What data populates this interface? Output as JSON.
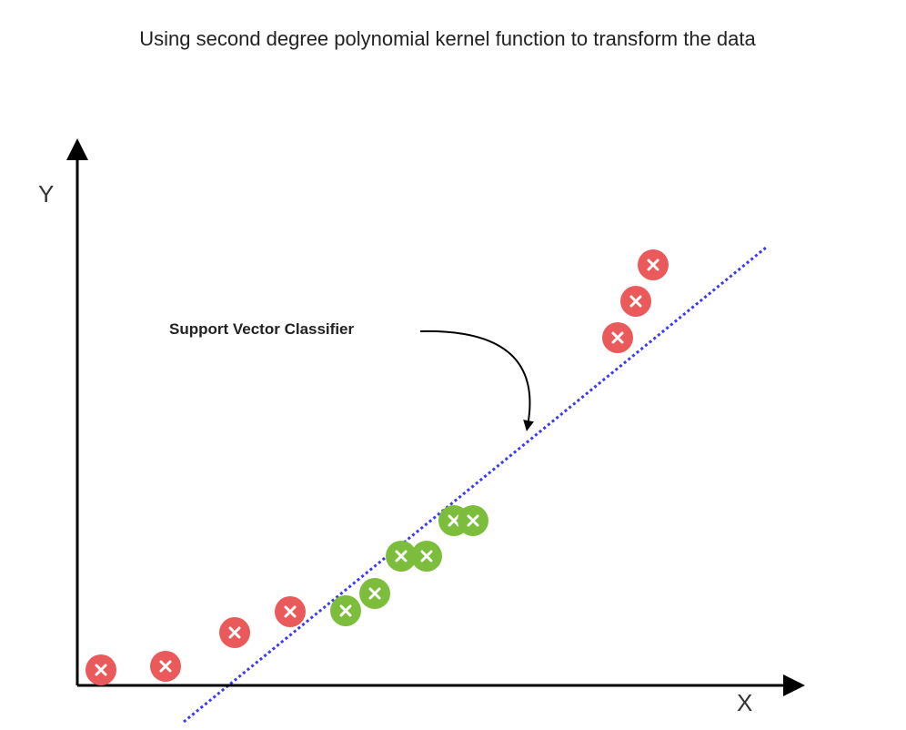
{
  "title": "Using second degree polynomial kernel function to transform the data",
  "axes": {
    "x_label": "X",
    "y_label": "Y"
  },
  "annotation": {
    "label": "Support Vector Classifier"
  },
  "classes": {
    "red": {
      "color": "#ea5a5a"
    },
    "green": {
      "color": "#7dbd3c"
    }
  },
  "colors": {
    "axis": "#000000",
    "separator": "#3b3bf0",
    "marker_cross": "#ffffff"
  },
  "points": [
    {
      "class": "red"
    },
    {
      "class": "red"
    },
    {
      "class": "red"
    },
    {
      "class": "red"
    },
    {
      "class": "green"
    },
    {
      "class": "green"
    },
    {
      "class": "green"
    },
    {
      "class": "green"
    },
    {
      "class": "green"
    },
    {
      "class": "green"
    },
    {
      "class": "red"
    },
    {
      "class": "red"
    },
    {
      "class": "red"
    }
  ]
}
